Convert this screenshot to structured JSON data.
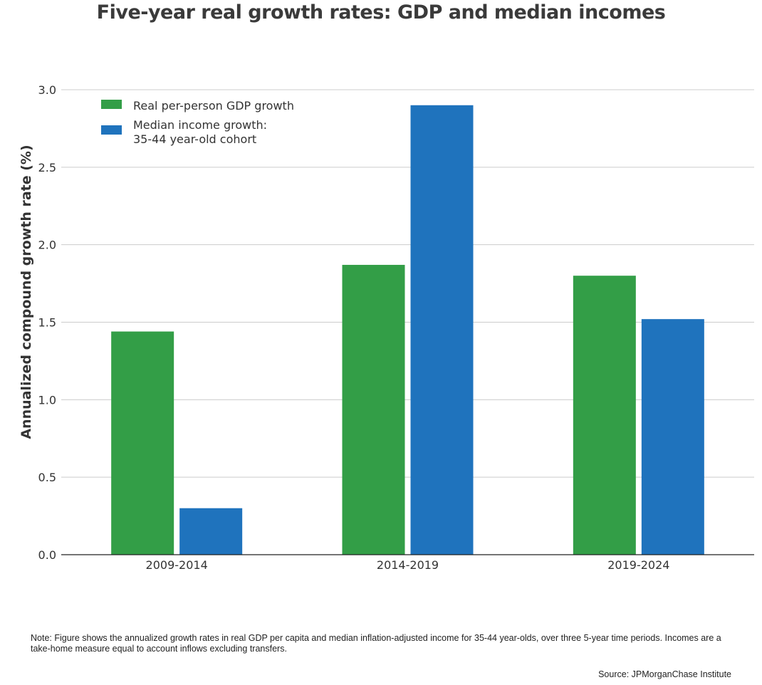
{
  "chart_data": {
    "type": "bar",
    "title": "Five-year real growth rates: GDP and median incomes",
    "ylabel": "Annualized compound growth rate (%)",
    "xlabel": "",
    "categories": [
      "2009-2014",
      "2014-2019",
      "2019-2024"
    ],
    "series": [
      {
        "name": "Real per-person GDP growth",
        "color": "#339e47",
        "values": [
          1.44,
          1.87,
          1.8
        ]
      },
      {
        "name_lines": [
          "Median income growth:",
          "35-44 year-old cohort"
        ],
        "color": "#1f73bd",
        "values": [
          0.3,
          2.9,
          1.52
        ]
      }
    ],
    "ylim": [
      0,
      3.0
    ],
    "yticks": [
      "0.0",
      "0.5",
      "1.0",
      "1.5",
      "2.0",
      "2.5",
      "3.0"
    ],
    "grid": true,
    "legend_position": "top-left"
  },
  "note": "Note: Figure shows the annualized growth rates in real GDP per capita and median inflation-adjusted income for 35-44 year-olds, over three 5-year time periods. Incomes are a take-home measure equal to account inflows excluding transfers.",
  "source": "Source: JPMorganChase Institute"
}
